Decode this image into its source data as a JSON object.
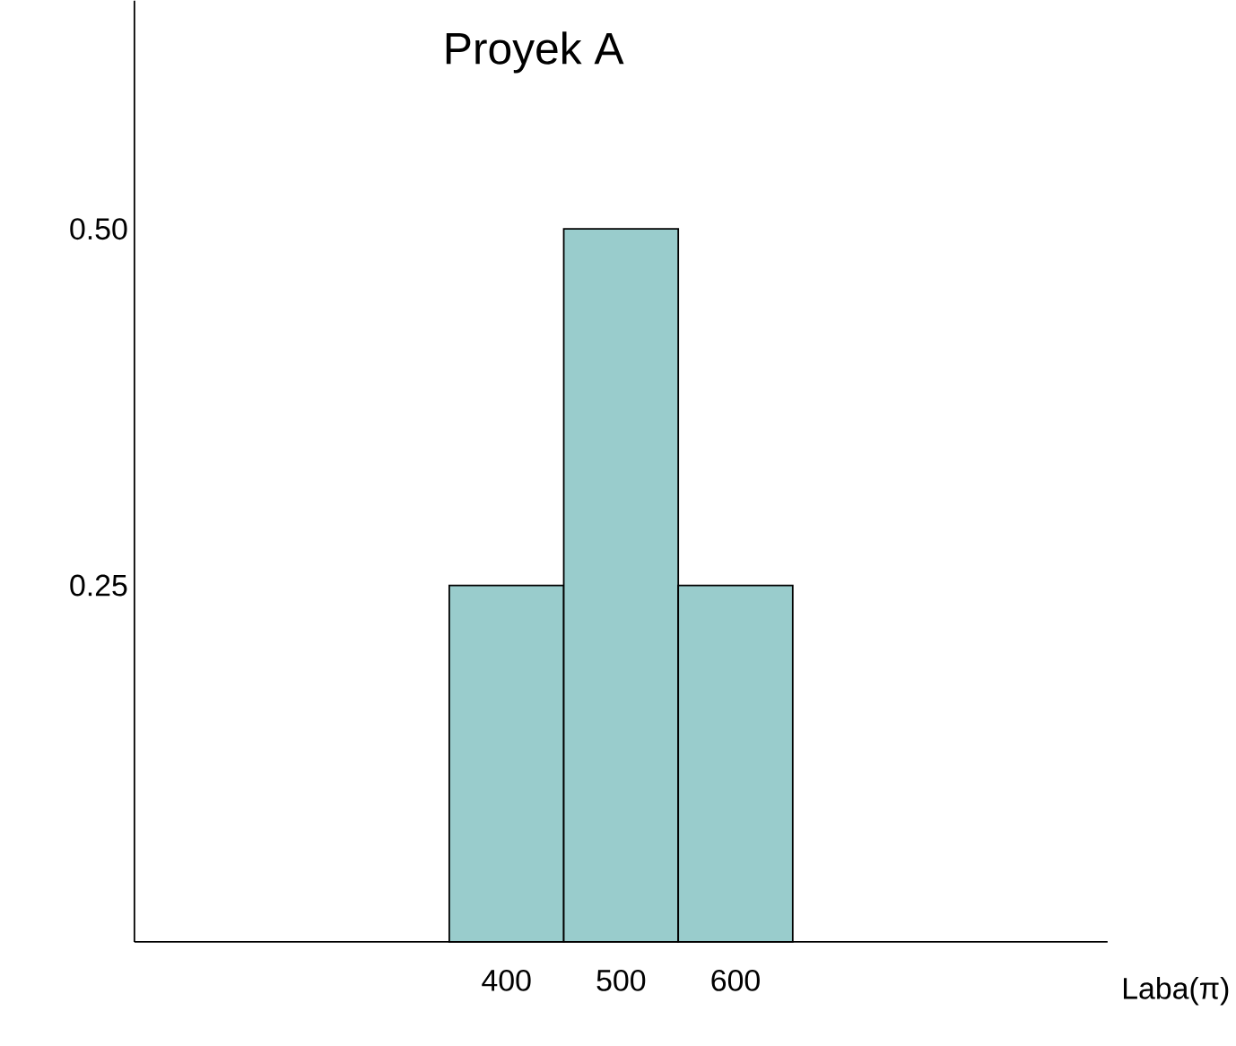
{
  "chart_data": {
    "type": "histogram",
    "title": "Proyek A",
    "xlabel": "Laba(π)",
    "bins": [
      350,
      450,
      550,
      650
    ],
    "values": [
      0.25,
      0.5,
      0.25
    ],
    "color": "#99cccc",
    "xlim": [
      75,
      925
    ],
    "xticks": [
      400,
      500,
      600
    ],
    "ylim": [
      0,
      0.66
    ],
    "yticks": [
      0.25,
      {
        "value": 0.5,
        "label": "0.50"
      }
    ]
  }
}
